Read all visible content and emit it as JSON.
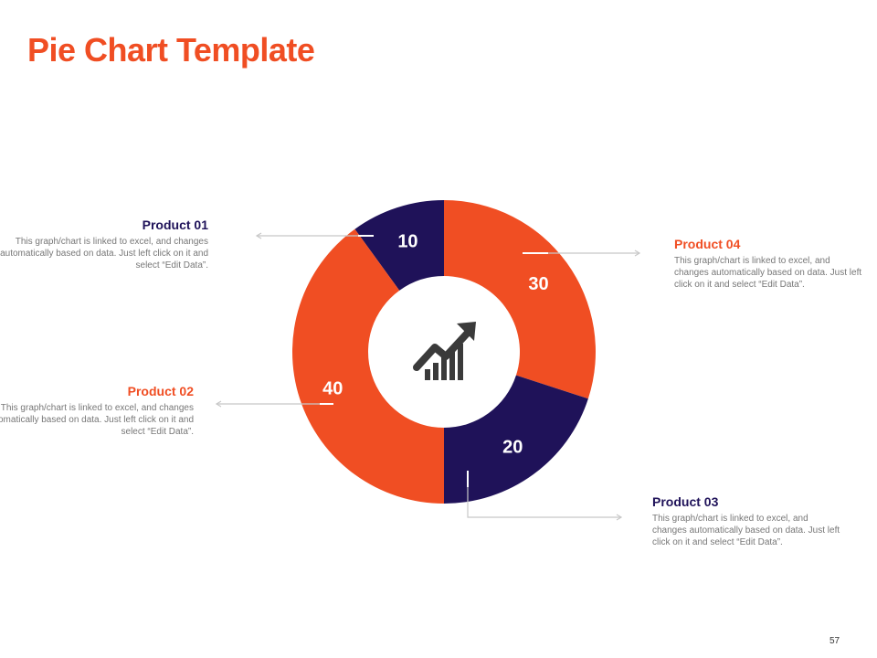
{
  "slide": {
    "title": "Pie Chart Template",
    "page_number": "57"
  },
  "colors": {
    "accent": "#f04e23",
    "dark": "#1f1259",
    "connector": "#c8c8c8"
  },
  "chart_data": {
    "type": "pie",
    "variant": "donut",
    "title": "",
    "categories": [
      "Product 01",
      "Product 04",
      "Product 03",
      "Product 02"
    ],
    "values": [
      10,
      30,
      20,
      40
    ],
    "slice_colors": [
      "#1f1259",
      "#f04e23",
      "#1f1259",
      "#f04e23"
    ],
    "data_labels": [
      "10",
      "30",
      "20",
      "40"
    ],
    "center_icon": "growth-chart-icon"
  },
  "callouts": [
    {
      "name": "Product 01",
      "text": "This graph/chart is linked to excel, and changes automatically based on data. Just left click on it and select “Edit Data”.",
      "color": "#1f1259"
    },
    {
      "name": "Product 02",
      "text": "This graph/chart is linked to excel, and changes automatically based on data. Just left click on it and select “Edit Data”.",
      "color": "#f04e23"
    },
    {
      "name": "Product 03",
      "text": "This graph/chart is linked to excel, and changes automatically based on data. Just left click on it and select “Edit Data”.",
      "color": "#1f1259"
    },
    {
      "name": "Product 04",
      "text": "This graph/chart is linked to excel, and changes automatically based on data. Just left click on it and select “Edit Data”.",
      "color": "#f04e23"
    }
  ]
}
